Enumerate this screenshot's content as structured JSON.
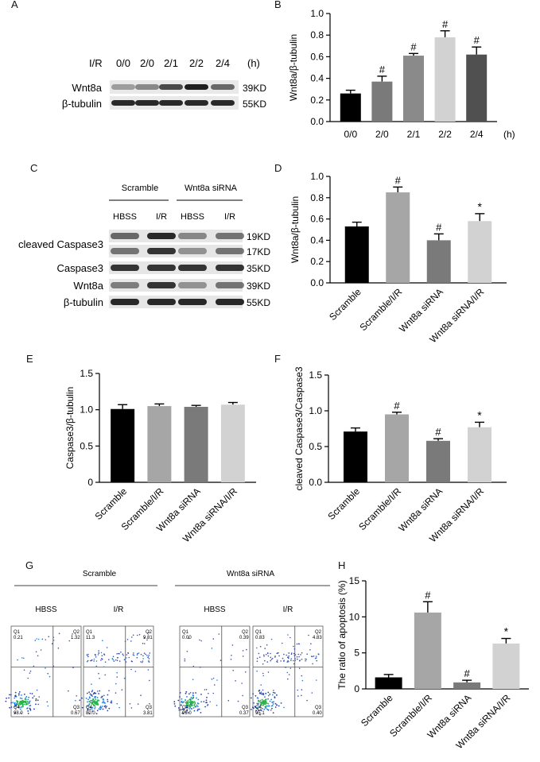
{
  "panels": {
    "A": {
      "letter": "A",
      "ir_label": "I/R",
      "timepoints": [
        "0/0",
        "2/0",
        "2/1",
        "2/2",
        "2/4"
      ],
      "unit": "(h)",
      "rows": [
        {
          "name": "Wnt8a",
          "kd": "39KD",
          "intensity": [
            0.35,
            0.45,
            0.75,
            0.95,
            0.6
          ]
        },
        {
          "name": "β-tubulin",
          "kd": "55KD",
          "intensity": [
            0.9,
            0.9,
            0.9,
            0.9,
            0.9
          ]
        }
      ]
    },
    "C": {
      "letter": "C",
      "groups": [
        {
          "label": "Scramble"
        },
        {
          "label": "Wnt8a siRNA"
        }
      ],
      "lanes": [
        "HBSS",
        "I/R",
        "HBSS",
        "I/R"
      ],
      "rows": [
        {
          "name": "cleaved Caspase3",
          "kd": "19KD",
          "intensity": [
            0.6,
            0.9,
            0.45,
            0.55
          ]
        },
        {
          "name": "",
          "kd": "17KD",
          "intensity": [
            0.55,
            0.85,
            0.4,
            0.55
          ]
        },
        {
          "name": "Caspase3",
          "kd": "35KD",
          "intensity": [
            0.85,
            0.85,
            0.85,
            0.85
          ]
        },
        {
          "name": "Wnt8a",
          "kd": "39KD",
          "intensity": [
            0.5,
            0.85,
            0.4,
            0.55
          ]
        },
        {
          "name": "β-tubulin",
          "kd": "55KD",
          "intensity": [
            0.9,
            0.9,
            0.9,
            0.9
          ]
        }
      ]
    },
    "G": {
      "letter": "G",
      "groups": [
        {
          "label": "Scramble"
        },
        {
          "label": "Wnt8a siRNA"
        }
      ],
      "plots": [
        {
          "title": "HBSS",
          "q1": "0.21",
          "q2": "1.32",
          "q3": "0.67",
          "q4": "98.0",
          "ir": false
        },
        {
          "title": "I/R",
          "q1": "11.3",
          "q2": "9.81",
          "q3": "3.81",
          "q4": "80.0",
          "ir": true
        },
        {
          "title": "HBSS",
          "q1": "0.00",
          "q2": "0.39",
          "q3": "0.37",
          "q4": "99.0",
          "ir": false
        },
        {
          "title": "I/R",
          "q1": "0.83",
          "q2": "4.83",
          "q3": "0.40",
          "q4": "95.1",
          "ir": true
        }
      ]
    }
  },
  "colors": {
    "black": "#000000",
    "dark_gray": "#505050",
    "mid_gray": "#7a7a7a",
    "light_gray": "#a6a6a6",
    "lightest_gray": "#d2d2d2"
  },
  "chart_data": [
    {
      "panel": "B",
      "type": "bar",
      "categories": [
        "0/0",
        "2/0",
        "2/1",
        "2/2",
        "2/4"
      ],
      "values": [
        0.26,
        0.37,
        0.61,
        0.78,
        0.62
      ],
      "errors": [
        0.03,
        0.05,
        0.02,
        0.06,
        0.07
      ],
      "markers": [
        "",
        "#",
        "#",
        "#",
        "#"
      ],
      "ylabel": "Wnt8a/β-tubulin",
      "xunit": "(h)",
      "ylim": [
        0,
        1.0
      ],
      "yticks": [
        "0.0",
        "0.2",
        "0.4",
        "0.6",
        "0.8",
        "1.0"
      ],
      "colors": [
        "#000000",
        "#7a7a7a",
        "#8a8a8a",
        "#d2d2d2",
        "#505050"
      ]
    },
    {
      "panel": "D",
      "type": "bar",
      "categories": [
        "Scramble",
        "Scramble/I/R",
        "Wnt8a siRNA",
        "Wnt8a siRNA/I/R"
      ],
      "values": [
        0.53,
        0.85,
        0.4,
        0.58
      ],
      "errors": [
        0.04,
        0.05,
        0.06,
        0.07
      ],
      "markers": [
        "",
        "#",
        "#",
        "*"
      ],
      "ylabel": "Wnt8a/β-tubulin",
      "ylim": [
        0,
        1.0
      ],
      "yticks": [
        "0.0",
        "0.2",
        "0.4",
        "0.6",
        "0.8",
        "1.0"
      ],
      "colors": [
        "#000000",
        "#a6a6a6",
        "#7a7a7a",
        "#d2d2d2"
      ]
    },
    {
      "panel": "E",
      "type": "bar",
      "categories": [
        "Scramble",
        "Scramble/I/R",
        "Wnt8a siRNA",
        "Wnt8a siRNA/I/R"
      ],
      "values": [
        1.01,
        1.05,
        1.04,
        1.07
      ],
      "errors": [
        0.06,
        0.03,
        0.02,
        0.03
      ],
      "markers": [
        "",
        "",
        "",
        ""
      ],
      "ylabel": "Caspase3/β-tubulin",
      "ylim": [
        0,
        1.5
      ],
      "yticks": [
        "0",
        "0.5",
        "1.0",
        "1.5"
      ],
      "colors": [
        "#000000",
        "#a6a6a6",
        "#7a7a7a",
        "#d2d2d2"
      ]
    },
    {
      "panel": "F",
      "type": "bar",
      "categories": [
        "Scramble",
        "Scramble/I/R",
        "Wnt8a siRNA",
        "Wnt8a siRNA/I/R"
      ],
      "values": [
        0.71,
        0.95,
        0.58,
        0.77
      ],
      "errors": [
        0.05,
        0.03,
        0.03,
        0.07
      ],
      "markers": [
        "",
        "#",
        "#",
        "*"
      ],
      "ylabel": "cleaved Caspase3/Caspase3",
      "ylim": [
        0,
        1.5
      ],
      "yticks": [
        "0.0",
        "0.5",
        "1.0",
        "1.5"
      ],
      "colors": [
        "#000000",
        "#a6a6a6",
        "#7a7a7a",
        "#d2d2d2"
      ]
    },
    {
      "panel": "H",
      "type": "bar",
      "categories": [
        "Scramble",
        "Scramble/I/R",
        "Wnt8a siRNA",
        "Wnt8a siRNA/I/R"
      ],
      "values": [
        1.6,
        10.6,
        0.9,
        6.3
      ],
      "errors": [
        0.4,
        1.5,
        0.3,
        0.7
      ],
      "markers": [
        "",
        "#",
        "#",
        "*"
      ],
      "ylabel": "The ratio of apoptosis (%)",
      "ylim": [
        0,
        15
      ],
      "yticks": [
        "0",
        "5",
        "10",
        "15"
      ],
      "colors": [
        "#000000",
        "#a6a6a6",
        "#7a7a7a",
        "#d2d2d2"
      ]
    }
  ]
}
